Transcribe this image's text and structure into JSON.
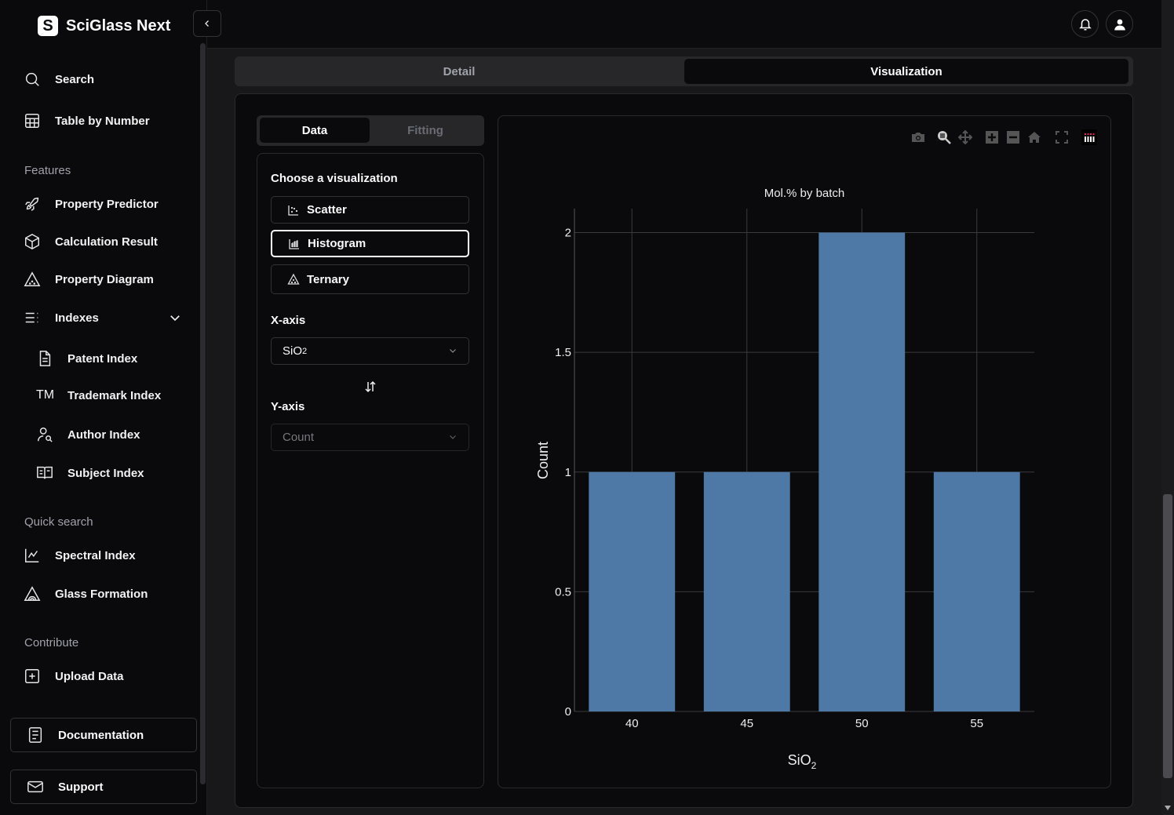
{
  "app": {
    "title": "SciGlass Next",
    "logo_letter": "S"
  },
  "sidebar": {
    "items": [
      {
        "label": "Search",
        "icon": "search-icon"
      },
      {
        "label": "Table by Number",
        "icon": "table-icon"
      }
    ],
    "features_label": "Features",
    "features": [
      {
        "label": "Property Predictor",
        "icon": "rocket-icon"
      },
      {
        "label": "Calculation Result",
        "icon": "cube-icon"
      },
      {
        "label": "Property Diagram",
        "icon": "triangle-icon"
      },
      {
        "label": "Indexes",
        "icon": "list-icon"
      }
    ],
    "indexes": [
      {
        "label": "Patent Index",
        "icon": "file-icon"
      },
      {
        "label": "Trademark Index",
        "icon": "trademark-icon",
        "glyph": "TM"
      },
      {
        "label": "Author Index",
        "icon": "user-search-icon"
      },
      {
        "label": "Subject Index",
        "icon": "book-icon"
      }
    ],
    "quick_label": "Quick search",
    "quick": [
      {
        "label": "Spectral Index",
        "icon": "chart-line-icon"
      },
      {
        "label": "Glass Formation",
        "icon": "glass-icon"
      }
    ],
    "contribute_label": "Contribute",
    "contribute": [
      {
        "label": "Upload Data",
        "icon": "plus-square-icon"
      }
    ],
    "footer": [
      {
        "label": "Documentation",
        "icon": "document-icon"
      },
      {
        "label": "Support",
        "icon": "mail-icon"
      }
    ]
  },
  "tabs": [
    {
      "label": "Detail"
    },
    {
      "label": "Visualization",
      "active": true
    }
  ],
  "panel": {
    "subtabs": [
      {
        "label": "Data",
        "active": true
      },
      {
        "label": "Fitting"
      }
    ],
    "choose_label": "Choose a visualization",
    "options": [
      {
        "label": "Scatter"
      },
      {
        "label": "Histogram",
        "selected": true
      },
      {
        "label": "Ternary"
      }
    ],
    "xaxis_label": "X-axis",
    "xaxis_value": "SiO",
    "xaxis_sub": "2",
    "yaxis_label": "Y-axis",
    "yaxis_value": "Count"
  },
  "colors": {
    "bar": "#4e79a7",
    "accent": "#ffffff"
  },
  "chart_data": {
    "type": "bar",
    "title": "Mol.% by batch",
    "xlabel": "SiO",
    "xlabel_sub": "2",
    "ylabel": "Count",
    "categories": [
      "40",
      "45",
      "50",
      "55"
    ],
    "x": [
      40,
      45,
      50,
      55
    ],
    "values": [
      1,
      1,
      2,
      1
    ],
    "xlim": [
      37.5,
      57.5
    ],
    "ylim": [
      0,
      2.1
    ],
    "yticks": [
      0,
      0.5,
      1,
      1.5,
      2
    ],
    "yticklabels": [
      "0",
      "0.5",
      "1",
      "1.5",
      "2"
    ],
    "grid": true
  }
}
